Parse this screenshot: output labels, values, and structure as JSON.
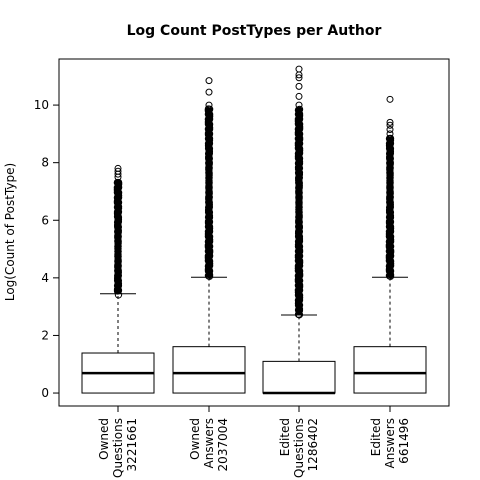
{
  "chart_data": {
    "type": "box",
    "title": "Log Count PostTypes per Author",
    "xlabel": "",
    "ylabel": "Log(Count of PostType)",
    "ylim": [
      -0.45,
      11.6
    ],
    "yticks": [
      0,
      2,
      4,
      6,
      8,
      10
    ],
    "grid": false,
    "legend": "none",
    "categories": [
      {
        "lines": [
          "Owned",
          "Questions",
          "3221661"
        ]
      },
      {
        "lines": [
          "Owned",
          "Answers",
          "2037004"
        ]
      },
      {
        "lines": [
          "Edited",
          "Questions",
          "1286402"
        ]
      },
      {
        "lines": [
          "Edited",
          "Answers",
          "661496"
        ]
      }
    ],
    "boxes": [
      {
        "q1": 0,
        "median": 0.69,
        "q3": 1.39,
        "whisker_low": 0,
        "whisker_high": 3.45,
        "outlier_range": [
          3.45,
          7.4
        ],
        "sparse_outliers": [
          7.5,
          7.6,
          7.7,
          7.8
        ]
      },
      {
        "q1": 0,
        "median": 0.69,
        "q3": 1.61,
        "whisker_low": 0,
        "whisker_high": 4.02,
        "outlier_range": [
          4.02,
          9.9
        ],
        "sparse_outliers": [
          10.0,
          10.45,
          10.85
        ]
      },
      {
        "q1": 0,
        "median": 0,
        "q3": 1.1,
        "whisker_low": 0,
        "whisker_high": 2.71,
        "outlier_range": [
          2.71,
          9.9
        ],
        "sparse_outliers": [
          10.0,
          10.3,
          10.65,
          10.95,
          11.05,
          11.25
        ]
      },
      {
        "q1": 0,
        "median": 0.69,
        "q3": 1.61,
        "whisker_low": 0,
        "whisker_high": 4.02,
        "outlier_range": [
          4.02,
          8.9
        ],
        "sparse_outliers": [
          9.0,
          9.15,
          9.3,
          9.4,
          10.2
        ]
      }
    ]
  }
}
